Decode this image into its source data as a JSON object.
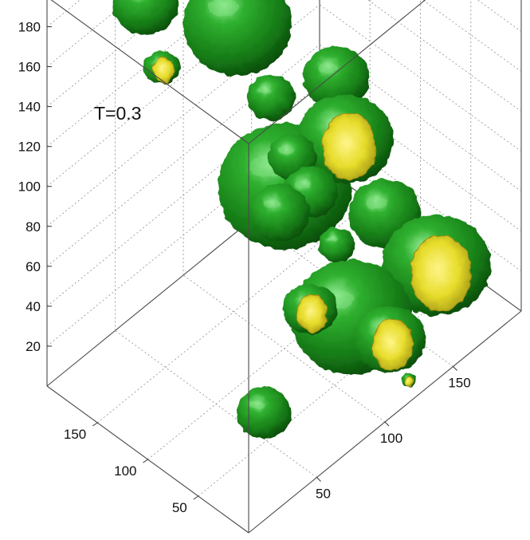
{
  "chart_data": {
    "type": "isosurface-3d",
    "annotation": "T=0.3",
    "title": "",
    "xlabel": "",
    "ylabel": "",
    "zlabel": "",
    "grid": true,
    "axes": {
      "x": {
        "ticks": [
          50,
          100,
          150
        ],
        "range": [
          0,
          200
        ]
      },
      "y": {
        "ticks": [
          50,
          100,
          150
        ],
        "range": [
          0,
          200
        ]
      },
      "z": {
        "ticks": [
          20,
          40,
          60,
          80,
          100,
          120,
          140,
          160,
          180
        ],
        "range": [
          0,
          195
        ]
      }
    },
    "colors": {
      "surface": "#1e8f1e",
      "surface_shadow": "#0b4f0b",
      "surface_highlight": "#7fe07f",
      "cap": "#e8e030",
      "cap_shadow": "#9a8a10"
    },
    "blobs": [
      {
        "x": 5,
        "y": 95,
        "z": 195,
        "r": 12,
        "kind": "cap"
      },
      {
        "x": 50,
        "y": 170,
        "z": 175,
        "r": 22,
        "kind": "surface"
      },
      {
        "x": 30,
        "y": 10,
        "z": 140,
        "r": 20,
        "kind": "surface"
      },
      {
        "x": 60,
        "y": 20,
        "z": 130,
        "r": 18,
        "kind": "surface"
      },
      {
        "x": 80,
        "y": 65,
        "z": 120,
        "r": 16,
        "kind": "surface"
      },
      {
        "x": 50,
        "y": 10,
        "z": 80,
        "r": 18,
        "kind": "cap"
      },
      {
        "x": 15,
        "y": 5,
        "z": 50,
        "r": 18,
        "kind": "surface"
      },
      {
        "x": 110,
        "y": 160,
        "z": 135,
        "r": 36,
        "kind": "surface"
      },
      {
        "x": 145,
        "y": 180,
        "z": 150,
        "r": 28,
        "kind": "surface"
      },
      {
        "x": 120,
        "y": 140,
        "z": 100,
        "r": 16,
        "kind": "surface"
      },
      {
        "x": 130,
        "y": 140,
        "z": 50,
        "r": 44,
        "kind": "surface"
      },
      {
        "x": 170,
        "y": 140,
        "z": 50,
        "r": 32,
        "kind": "cap"
      },
      {
        "x": 190,
        "y": 170,
        "z": 60,
        "r": 22,
        "kind": "surface"
      },
      {
        "x": 105,
        "y": 40,
        "z": 35,
        "r": 40,
        "kind": "surface"
      },
      {
        "x": 115,
        "y": 20,
        "z": 25,
        "r": 24,
        "kind": "cap"
      },
      {
        "x": 120,
        "y": 75,
        "z": 50,
        "r": 12,
        "kind": "surface"
      },
      {
        "x": 170,
        "y": 50,
        "z": 20,
        "r": 36,
        "kind": "cap"
      },
      {
        "x": 185,
        "y": 115,
        "z": 15,
        "r": 24,
        "kind": "surface"
      },
      {
        "x": 195,
        "y": 195,
        "z": 8,
        "r": 4,
        "kind": "surface"
      },
      {
        "x": 120,
        "y": 5,
        "z": 8,
        "r": 5,
        "kind": "cap"
      }
    ]
  }
}
